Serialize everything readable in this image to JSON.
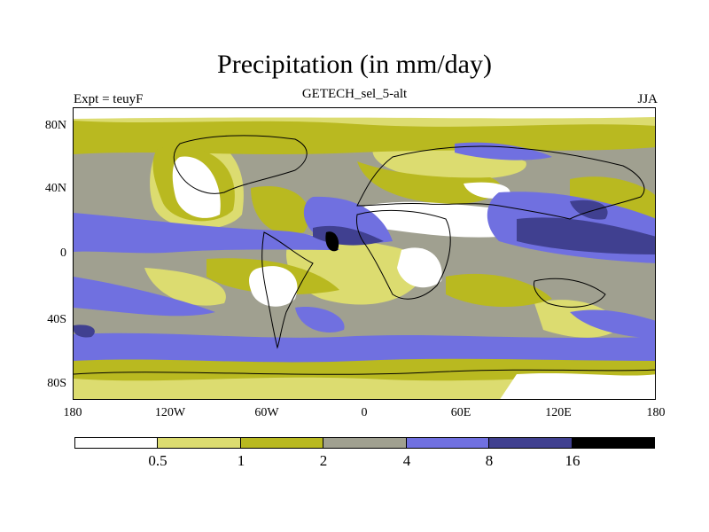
{
  "title": "Precipitation (in mm/day)",
  "subtitle": "GETECH_sel_5-alt",
  "left_label": "Expt = teuyF",
  "right_label": "JJA",
  "lat_ticks": [
    "80N",
    "40N",
    "0",
    "40S",
    "80S"
  ],
  "lon_ticks": [
    "180",
    "120W",
    "60W",
    "0",
    "60E",
    "120E",
    "180"
  ],
  "colorbar": {
    "labels": [
      "0.5",
      "1",
      "2",
      "4",
      "8",
      "16"
    ],
    "colors": [
      "#ffffff",
      "#dcdc70",
      "#b9b920",
      "#a0a090",
      "#7070e0",
      "#404090",
      "#000000"
    ]
  }
}
